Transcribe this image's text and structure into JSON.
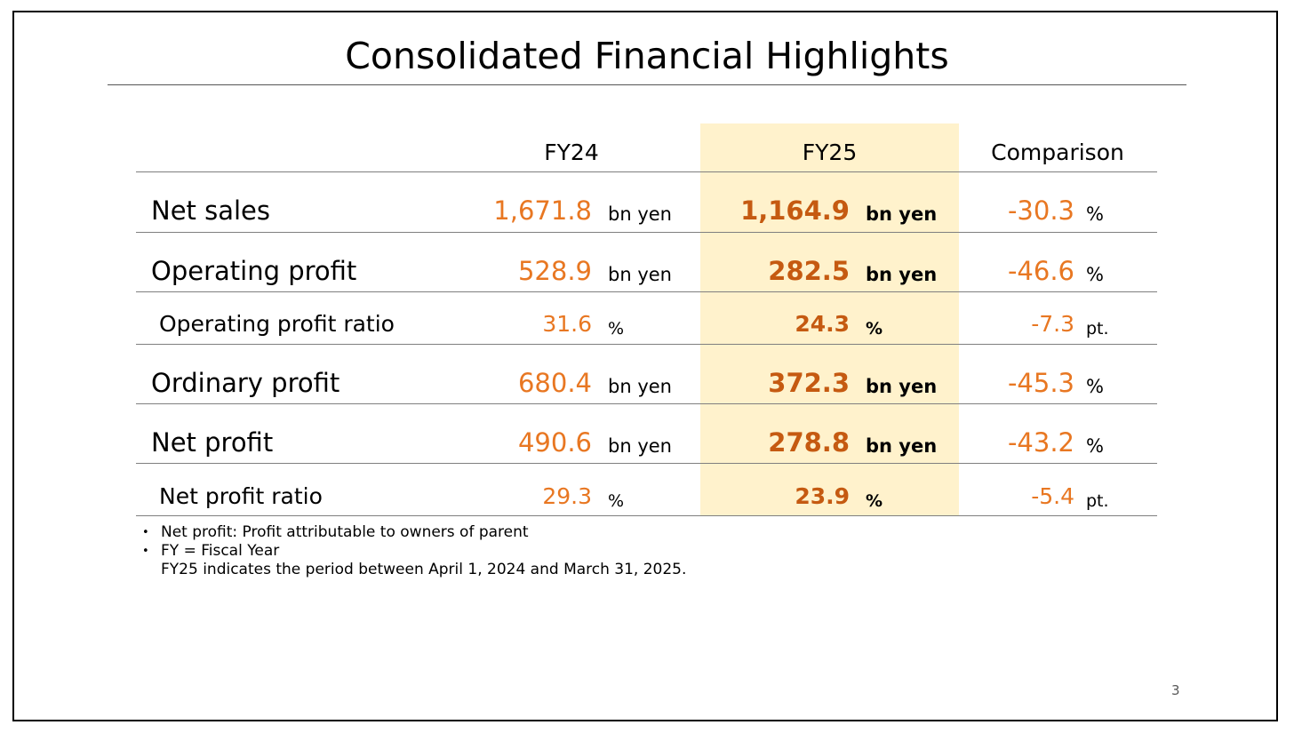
{
  "title": "Consolidated Financial Highlights",
  "headers": {
    "fy24": "FY24",
    "fy25": "FY25",
    "comparison": "Comparison"
  },
  "colors": {
    "highlight": "#fff2cc",
    "value_orange": "#e87722",
    "value_bold": "#c55a11"
  },
  "rows": [
    {
      "label": "Net sales",
      "fy24_value": "1,671.8",
      "fy24_unit": "bn yen",
      "fy25_value": "1,164.9",
      "fy25_unit": "bn yen",
      "cmp_value": "-30.3",
      "cmp_unit": "%"
    },
    {
      "label": "Operating profit",
      "fy24_value": "528.9",
      "fy24_unit": "bn yen",
      "fy25_value": "282.5",
      "fy25_unit": "bn yen",
      "cmp_value": "-46.6",
      "cmp_unit": "%"
    },
    {
      "label": "Operating profit ratio",
      "fy24_value": "31.6",
      "fy24_unit": "%",
      "fy25_value": "24.3",
      "fy25_unit": "%",
      "cmp_value": "-7.3",
      "cmp_unit": "pt."
    },
    {
      "label": "Ordinary profit",
      "fy24_value": "680.4",
      "fy24_unit": "bn yen",
      "fy25_value": "372.3",
      "fy25_unit": "bn yen",
      "cmp_value": "-45.3",
      "cmp_unit": "%"
    },
    {
      "label": "Net profit",
      "fy24_value": "490.6",
      "fy24_unit": "bn yen",
      "fy25_value": "278.8",
      "fy25_unit": "bn yen",
      "cmp_value": "-43.2",
      "cmp_unit": "%"
    },
    {
      "label": "Net profit ratio",
      "fy24_value": "29.3",
      "fy24_unit": "%",
      "fy25_value": "23.9",
      "fy25_unit": "%",
      "cmp_value": "-5.4",
      "cmp_unit": "pt."
    }
  ],
  "notes": [
    {
      "bullet": "•",
      "text": "Net profit: Profit attributable to owners of parent"
    },
    {
      "bullet": "•",
      "text": "FY = Fiscal Year",
      "subtext": "FY25 indicates the period between April 1, 2024 and March 31, 2025."
    }
  ],
  "page_number": "3"
}
